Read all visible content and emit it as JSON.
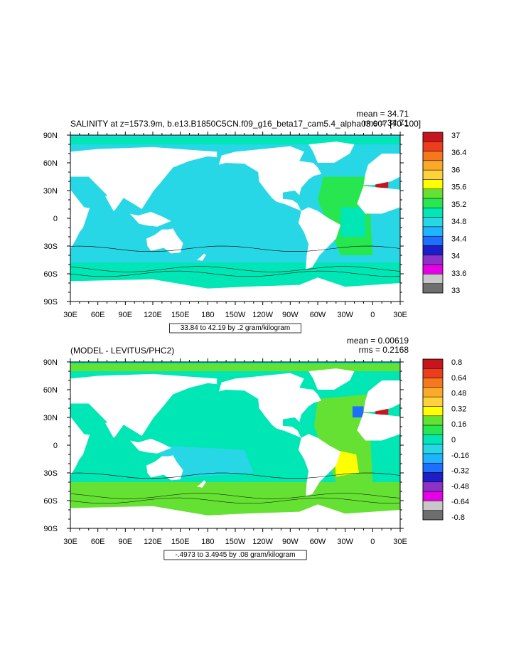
{
  "chart_data": [
    {
      "type": "heatmap",
      "title": "SALINITY at z=1573.9m, b.e13.B1850C5CN.f09_g16_beta17_cam5.4_alpha03.007 [70-100]",
      "stats": [
        "mean = 34.71",
        "rms = 34.71"
      ],
      "x_ticks": [
        "30E",
        "60E",
        "90E",
        "120E",
        "150E",
        "180",
        "150W",
        "120W",
        "90W",
        "60W",
        "30W",
        "0",
        "30E"
      ],
      "y_ticks": [
        "90N",
        "60N",
        "30N",
        "0",
        "30S",
        "60S",
        "90S"
      ],
      "lon_range": [
        30,
        390
      ],
      "lat_range": [
        -90,
        90
      ],
      "colorbar_labels": [
        "37",
        "36.4",
        "36",
        "35.6",
        "35.2",
        "34.8",
        "34.4",
        "34",
        "33.6",
        "33"
      ],
      "colorbar_colors": [
        "#c8141e",
        "#ee3c1e",
        "#f6781e",
        "#faaa28",
        "#ffd23c",
        "#ffff00",
        "#64e132",
        "#28e650",
        "#00e6b4",
        "#28d7e6",
        "#1eb4ff",
        "#1e6eff",
        "#1e1ec8",
        "#8c32c8",
        "#e600e6",
        "#c8c8c8",
        "#6e6e6e"
      ],
      "contour_info": "33.84 to 42.19 by .2 gram/kilogram"
    },
    {
      "type": "heatmap",
      "title": "(MODEL - LEVITUS/PHC2)",
      "stats": [
        "mean = 0.00619",
        "rms = 0.2168"
      ],
      "x_ticks": [
        "30E",
        "60E",
        "90E",
        "120E",
        "150E",
        "180",
        "150W",
        "120W",
        "90W",
        "60W",
        "30W",
        "0",
        "30E"
      ],
      "y_ticks": [
        "90N",
        "60N",
        "30N",
        "0",
        "30S",
        "60S",
        "90S"
      ],
      "lon_range": [
        30,
        390
      ],
      "lat_range": [
        -90,
        90
      ],
      "colorbar_labels": [
        "0.8",
        "0.64",
        "0.48",
        "0.32",
        "0.16",
        "0",
        "-0.16",
        "-0.32",
        "-0.48",
        "-0.64",
        "-0.8"
      ],
      "colorbar_colors": [
        "#c8141e",
        "#ee3c1e",
        "#f6781e",
        "#faaa28",
        "#ffd23c",
        "#ffff00",
        "#64e132",
        "#28e650",
        "#00e6b4",
        "#28d7e6",
        "#1eb4ff",
        "#1e6eff",
        "#1e1ec8",
        "#8c32c8",
        "#e600e6",
        "#c8c8c8",
        "#6e6e6e"
      ],
      "contour_info": "-.4973 to 3.4945 by .08 gram/kilogram"
    }
  ]
}
